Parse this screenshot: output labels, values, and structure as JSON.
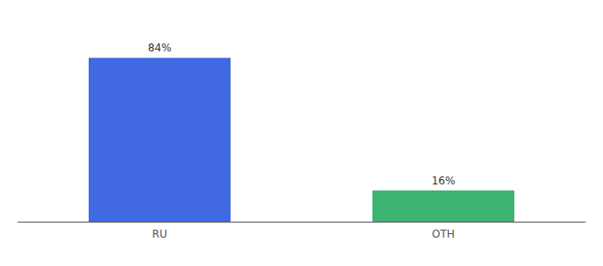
{
  "chart_data": {
    "type": "bar",
    "categories": [
      "RU",
      "OTH"
    ],
    "values": [
      84,
      16
    ],
    "colors": [
      "#4169E1",
      "#3CB371"
    ],
    "value_labels": [
      "84%",
      "16%"
    ],
    "data_labels": true,
    "ylim": [
      0,
      100
    ],
    "grid": false,
    "tick_labels": "x"
  }
}
